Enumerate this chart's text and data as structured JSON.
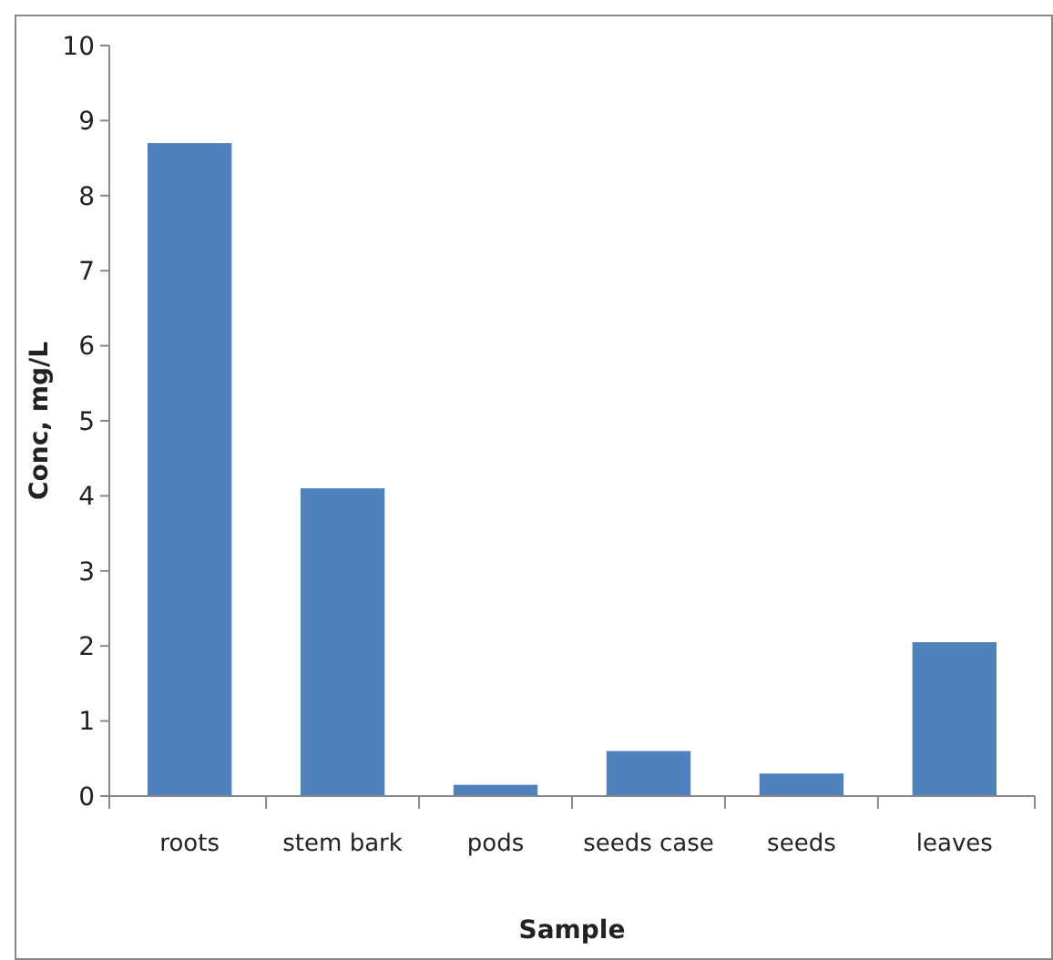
{
  "chart_data": {
    "type": "bar",
    "xlabel": "Sample",
    "ylabel": "Conc, mg/L",
    "categories": [
      "roots",
      "stem bark",
      "pods",
      "seeds case",
      "seeds",
      "leaves"
    ],
    "values": [
      8.7,
      4.1,
      0.15,
      0.6,
      0.3,
      2.05
    ],
    "color": "#4f81bd",
    "ylim": [
      0,
      10
    ],
    "yticks": [
      0,
      1,
      2,
      3,
      4,
      5,
      6,
      7,
      8,
      9,
      10
    ],
    "grid": false
  }
}
